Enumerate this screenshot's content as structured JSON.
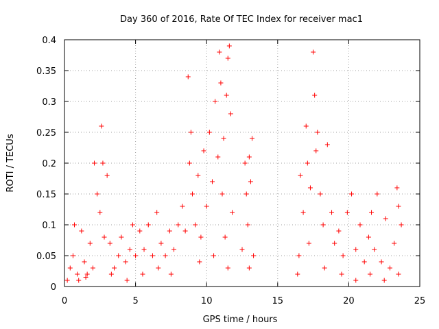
{
  "chart_data": {
    "type": "scatter",
    "title": "Day 360 of 2016, Rate Of TEC Index for receiver mac1",
    "xlabel": "GPS time / hours",
    "ylabel": "ROTI / TECUs",
    "xlim": [
      0,
      25
    ],
    "ylim": [
      0,
      0.4
    ],
    "xticks": [
      "0",
      "5",
      "10",
      "15",
      "20",
      "25"
    ],
    "yticks": [
      "0",
      "0.05",
      "0.1",
      "0.15",
      "0.2",
      "0.25",
      "0.3",
      "0.35",
      "0.4"
    ],
    "grid": true,
    "marker": "+",
    "color": "#ff0000",
    "series": [
      {
        "points": [
          [
            0.2,
            0.01
          ],
          [
            0.4,
            0.03
          ],
          [
            0.6,
            0.05
          ],
          [
            0.7,
            0.1
          ],
          [
            0.9,
            0.02
          ],
          [
            1.2,
            0.09
          ],
          [
            1.4,
            0.04
          ],
          [
            1.6,
            0.02
          ],
          [
            1.8,
            0.07
          ],
          [
            2.0,
            0.03
          ],
          [
            2.1,
            0.2
          ],
          [
            2.3,
            0.15
          ],
          [
            2.5,
            0.12
          ],
          [
            2.6,
            0.26
          ],
          [
            2.7,
            0.2
          ],
          [
            2.8,
            0.08
          ],
          [
            3.0,
            0.18
          ],
          [
            3.2,
            0.07
          ],
          [
            3.5,
            0.03
          ],
          [
            3.8,
            0.05
          ],
          [
            4.0,
            0.08
          ],
          [
            4.3,
            0.04
          ],
          [
            4.6,
            0.06
          ],
          [
            4.8,
            0.1
          ],
          [
            5.0,
            0.05
          ],
          [
            5.3,
            0.09
          ],
          [
            5.6,
            0.06
          ],
          [
            5.9,
            0.1
          ],
          [
            6.2,
            0.05
          ],
          [
            6.5,
            0.12
          ],
          [
            6.8,
            0.07
          ],
          [
            7.1,
            0.05
          ],
          [
            7.4,
            0.09
          ],
          [
            7.7,
            0.06
          ],
          [
            8.0,
            0.1
          ],
          [
            8.3,
            0.13
          ],
          [
            8.5,
            0.09
          ],
          [
            8.7,
            0.34
          ],
          [
            8.8,
            0.2
          ],
          [
            8.9,
            0.25
          ],
          [
            9.0,
            0.15
          ],
          [
            9.2,
            0.1
          ],
          [
            9.4,
            0.18
          ],
          [
            9.6,
            0.08
          ],
          [
            9.8,
            0.22
          ],
          [
            10.0,
            0.13
          ],
          [
            10.2,
            0.25
          ],
          [
            10.4,
            0.17
          ],
          [
            10.6,
            0.3
          ],
          [
            10.8,
            0.21
          ],
          [
            10.9,
            0.38
          ],
          [
            11.0,
            0.33
          ],
          [
            11.1,
            0.15
          ],
          [
            11.2,
            0.24
          ],
          [
            11.3,
            0.08
          ],
          [
            11.4,
            0.31
          ],
          [
            11.5,
            0.37
          ],
          [
            11.6,
            0.39
          ],
          [
            11.7,
            0.28
          ],
          [
            11.8,
            0.12
          ],
          [
            12.7,
            0.2
          ],
          [
            12.8,
            0.15
          ],
          [
            12.9,
            0.1
          ],
          [
            13.0,
            0.21
          ],
          [
            13.1,
            0.17
          ],
          [
            13.2,
            0.24
          ],
          [
            13.3,
            0.05
          ],
          [
            16.4,
            0.02
          ],
          [
            16.6,
            0.18
          ],
          [
            16.8,
            0.12
          ],
          [
            17.0,
            0.26
          ],
          [
            17.1,
            0.2
          ],
          [
            17.3,
            0.16
          ],
          [
            17.5,
            0.38
          ],
          [
            17.6,
            0.31
          ],
          [
            17.7,
            0.22
          ],
          [
            17.8,
            0.25
          ],
          [
            18.0,
            0.15
          ],
          [
            18.2,
            0.1
          ],
          [
            18.5,
            0.23
          ],
          [
            18.8,
            0.12
          ],
          [
            19.0,
            0.07
          ],
          [
            19.3,
            0.09
          ],
          [
            19.6,
            0.05
          ],
          [
            19.9,
            0.12
          ],
          [
            20.2,
            0.15
          ],
          [
            20.5,
            0.06
          ],
          [
            20.8,
            0.1
          ],
          [
            21.1,
            0.04
          ],
          [
            21.4,
            0.08
          ],
          [
            21.6,
            0.12
          ],
          [
            21.8,
            0.06
          ],
          [
            22.0,
            0.15
          ],
          [
            22.3,
            0.04
          ],
          [
            22.6,
            0.11
          ],
          [
            22.9,
            0.03
          ],
          [
            23.2,
            0.07
          ],
          [
            23.4,
            0.16
          ],
          [
            23.5,
            0.13
          ],
          [
            23.7,
            0.1
          ],
          [
            1.0,
            0.01
          ],
          [
            1.5,
            0.015
          ],
          [
            3.3,
            0.02
          ],
          [
            4.4,
            0.01
          ],
          [
            5.5,
            0.02
          ],
          [
            6.6,
            0.03
          ],
          [
            7.5,
            0.02
          ],
          [
            9.5,
            0.04
          ],
          [
            10.5,
            0.05
          ],
          [
            11.5,
            0.03
          ],
          [
            12.5,
            0.06
          ],
          [
            13.0,
            0.03
          ],
          [
            16.5,
            0.05
          ],
          [
            17.2,
            0.07
          ],
          [
            18.3,
            0.03
          ],
          [
            19.5,
            0.02
          ],
          [
            20.5,
            0.01
          ],
          [
            21.5,
            0.02
          ],
          [
            22.5,
            0.01
          ],
          [
            23.5,
            0.02
          ]
        ]
      }
    ]
  }
}
